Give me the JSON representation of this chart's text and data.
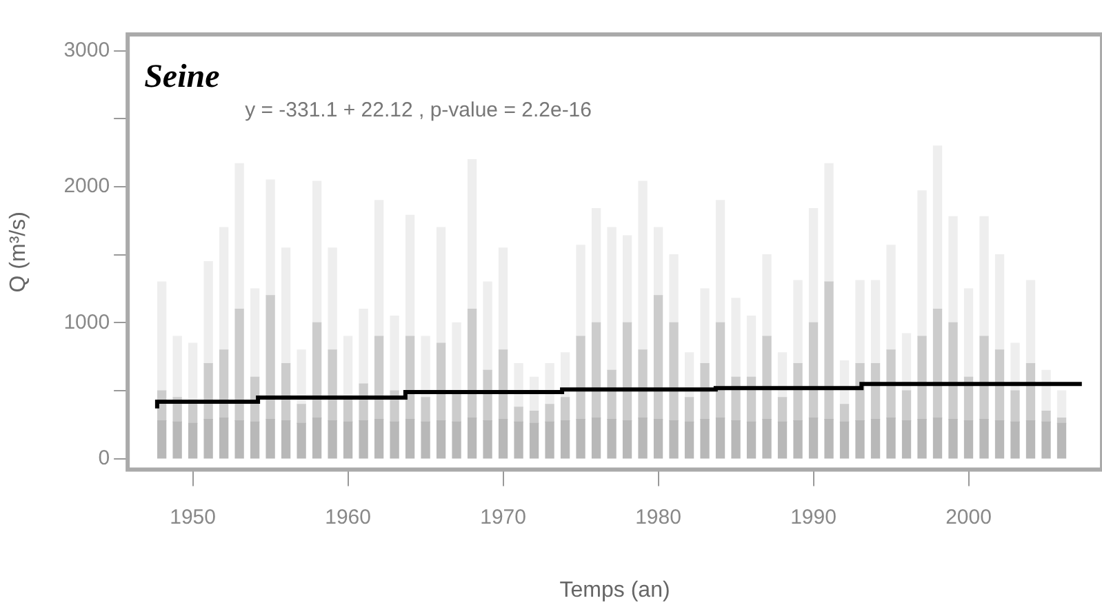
{
  "chart_data": {
    "type": "bar",
    "title": "Seine",
    "xlabel": "Temps (an)",
    "ylabel": "Q (m³/s)",
    "annotations": [
      "y = -331.1 + 22.12 , p-value = 2.2e-16"
    ],
    "x": [
      1948,
      1949,
      1950,
      1951,
      1952,
      1953,
      1954,
      1955,
      1956,
      1957,
      1958,
      1959,
      1960,
      1961,
      1962,
      1963,
      1964,
      1965,
      1966,
      1967,
      1968,
      1969,
      1970,
      1971,
      1972,
      1973,
      1974,
      1975,
      1976,
      1977,
      1978,
      1979,
      1980,
      1981,
      1982,
      1983,
      1984,
      1985,
      1986,
      1987,
      1988,
      1989,
      1990,
      1991,
      1992,
      1993,
      1994,
      1995,
      1996,
      1997,
      1998,
      1999,
      2000,
      2001,
      2002,
      2003,
      2004,
      2005,
      2006
    ],
    "series": [
      {
        "type": "step",
        "color": "#000000",
        "x": [
          1947.7,
          1954.2,
          1963.7,
          1973.8,
          1983.7,
          1993.1,
          2003.2,
          2007.3
        ],
        "values": [
          370,
          420,
          450,
          490,
          510,
          520,
          550,
          550
        ]
      },
      {
        "color": "#b8b8b8",
        "values": [
          280,
          270,
          260,
          290,
          300,
          280,
          270,
          290,
          280,
          260,
          300,
          280,
          270,
          280,
          290,
          270,
          290,
          270,
          280,
          270,
          300,
          280,
          290,
          270,
          260,
          270,
          280,
          290,
          300,
          290,
          280,
          300,
          290,
          280,
          270,
          290,
          300,
          280,
          270,
          290,
          270,
          280,
          300,
          290,
          270,
          280,
          290,
          300,
          280,
          290,
          300,
          290,
          280,
          290,
          280,
          270,
          280,
          270,
          260
        ]
      },
      {
        "color": "#cccccc",
        "values": [
          220,
          180,
          160,
          410,
          500,
          820,
          330,
          910,
          420,
          140,
          700,
          520,
          180,
          270,
          610,
          230,
          610,
          180,
          570,
          230,
          800,
          370,
          510,
          110,
          90,
          130,
          170,
          610,
          700,
          360,
          720,
          500,
          910,
          720,
          180,
          410,
          700,
          320,
          330,
          610,
          180,
          420,
          700,
          1010,
          130,
          420,
          410,
          500,
          220,
          610,
          800,
          710,
          320,
          610,
          520,
          230,
          420,
          80,
          40
        ]
      },
      {
        "color": "#eeeeee",
        "values": [
          800,
          450,
          430,
          750,
          900,
          1070,
          650,
          850,
          850,
          400,
          1040,
          750,
          450,
          550,
          1000,
          550,
          890,
          450,
          850,
          500,
          1100,
          650,
          750,
          320,
          250,
          300,
          330,
          670,
          840,
          1050,
          640,
          1240,
          500,
          500,
          330,
          550,
          900,
          580,
          450,
          600,
          330,
          610,
          840,
          870,
          320,
          610,
          610,
          770,
          420,
          1070,
          1200,
          780,
          650,
          880,
          700,
          350,
          610,
          300,
          200
        ]
      }
    ],
    "stacked": true,
    "xlim": [
      1945.8,
      2008.6
    ],
    "xticks": [
      1950,
      1960,
      1970,
      1980,
      1990,
      2000
    ],
    "ylim": [
      -80,
      3120
    ],
    "yticks": [
      0,
      {
        "value": 500,
        "label": null
      },
      1000,
      {
        "value": 1500,
        "label": null
      },
      2000,
      {
        "value": 2500,
        "label": null
      },
      3000
    ],
    "grid": false,
    "legend": false
  }
}
